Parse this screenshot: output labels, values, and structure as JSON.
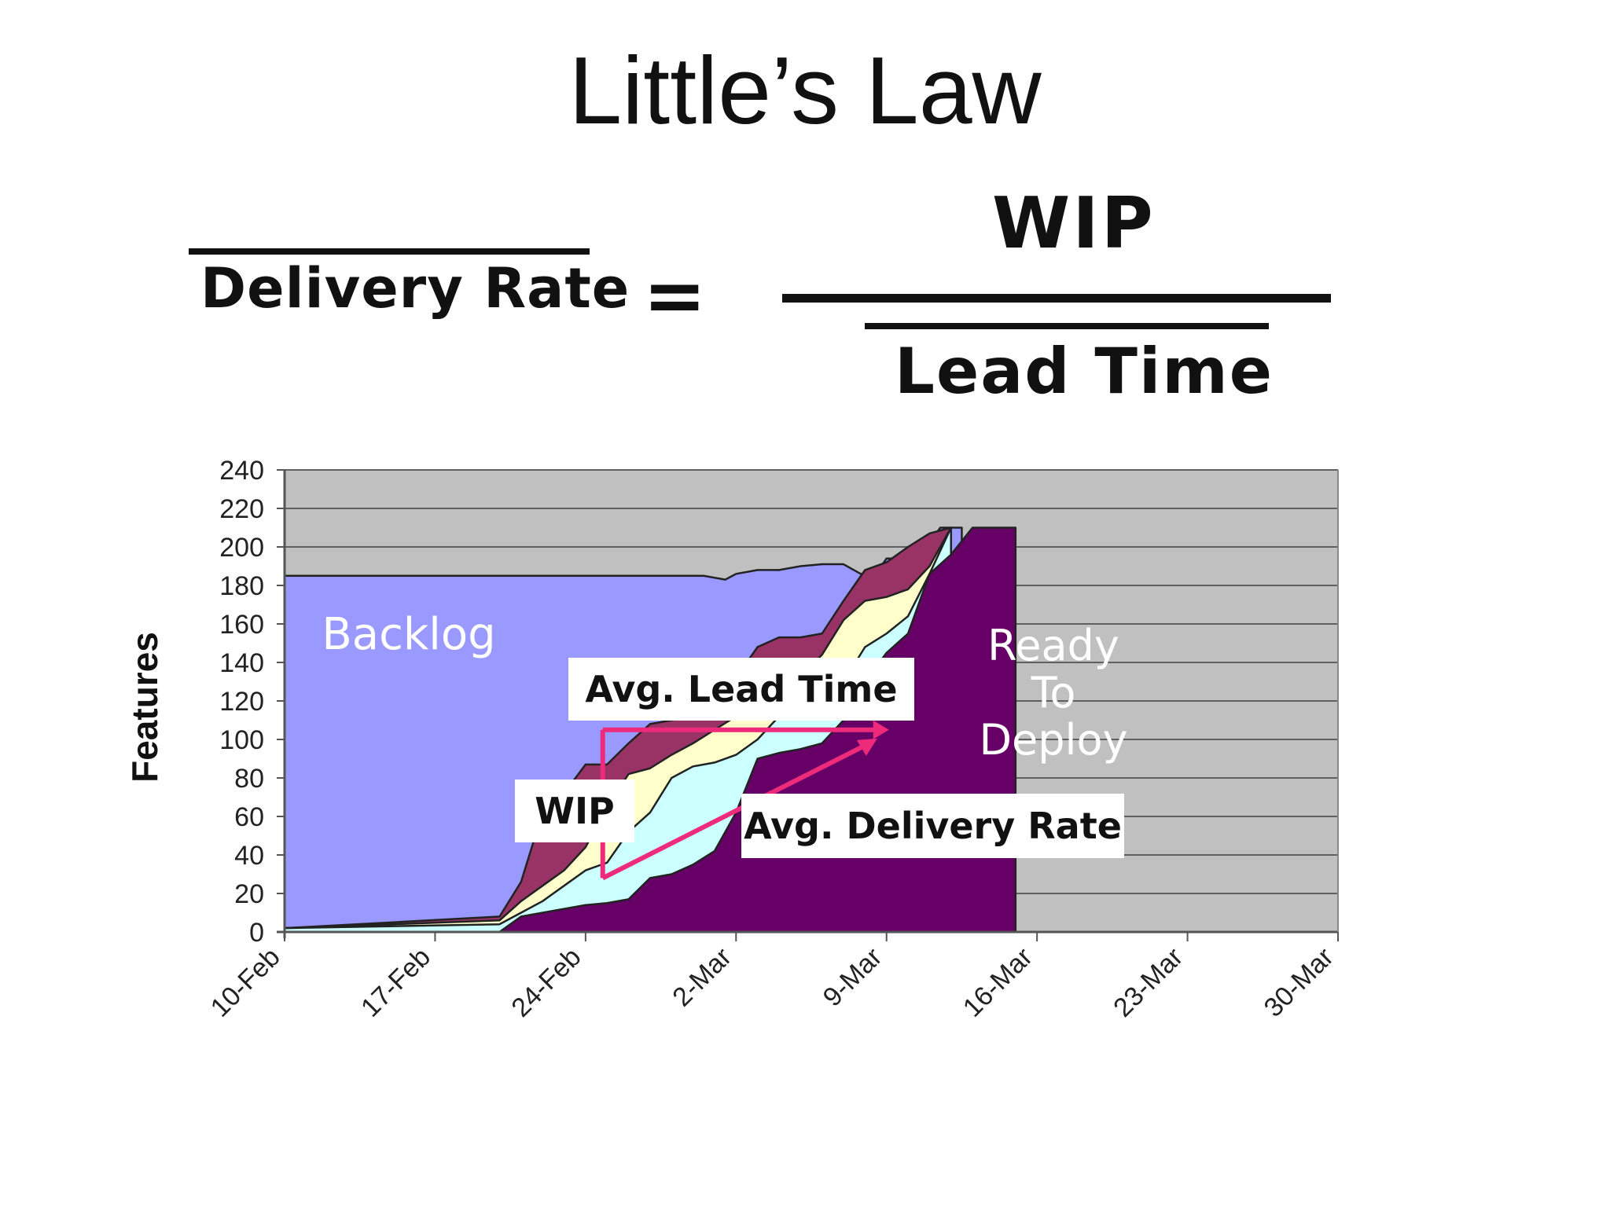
{
  "slide": {
    "title": "Little’s Law",
    "equation": {
      "left": "Delivery Rate",
      "equals": "=",
      "numerator": "WIP",
      "denominator": "Lead Time"
    }
  },
  "chart_data": {
    "type": "area",
    "ylabel": "Features",
    "xlabel": "",
    "ylim": [
      0,
      240
    ],
    "yticks": [
      "0",
      "20",
      "40",
      "60",
      "80",
      "100",
      "120",
      "140",
      "160",
      "180",
      "200",
      "220",
      "240"
    ],
    "xticks": [
      "10-Feb",
      "17-Feb",
      "24-Feb",
      "2-Mar",
      "9-Mar",
      "16-Mar",
      "23-Mar",
      "30-Mar"
    ],
    "grid": true,
    "colors": {
      "plot_bg": "#c0c0c0",
      "backlog": "#9999ff",
      "band_dark": "#993366",
      "band_light": "#ffffcc",
      "band_cyan": "#ccffff",
      "ready": "#660066",
      "arrow": "#ee2a7b"
    },
    "series": [
      {
        "name": "Backlog",
        "x": [
          0,
          10,
          12,
          13,
          14,
          15,
          16,
          17,
          18,
          19,
          19.5,
          20,
          20.5,
          21,
          22,
          23,
          24,
          25,
          26,
          26.8,
          27.5,
          28,
          29.5,
          30.5,
          31.5
        ],
        "y": [
          185,
          185,
          185,
          185,
          185,
          185,
          185,
          185,
          185,
          185,
          185,
          184,
          183,
          186,
          188,
          188,
          190,
          191,
          191,
          186,
          186,
          194,
          194,
          210,
          210
        ]
      },
      {
        "name": "",
        "x": [
          0,
          10,
          11,
          12,
          13,
          14,
          15,
          16,
          17,
          18,
          19,
          20,
          21,
          22,
          23,
          24,
          25,
          26,
          27,
          28,
          29,
          30,
          31
        ],
        "y": [
          2,
          8,
          26,
          62,
          72,
          87,
          87,
          98,
          108,
          110,
          112,
          125,
          132,
          148,
          153,
          153,
          155,
          172,
          188,
          192,
          200,
          207,
          210
        ]
      },
      {
        "name": "",
        "x": [
          0,
          10,
          11,
          12,
          13,
          14,
          15,
          16,
          17,
          18,
          19,
          20,
          21,
          22,
          23,
          24,
          25,
          26,
          27,
          28,
          29,
          30,
          31
        ],
        "y": [
          2,
          6,
          16,
          24,
          32,
          44,
          65,
          82,
          85,
          92,
          98,
          105,
          112,
          122,
          130,
          133,
          144,
          162,
          172,
          174,
          178,
          190,
          210
        ]
      },
      {
        "name": "",
        "x": [
          0,
          10,
          11,
          12,
          13,
          14,
          15,
          16,
          17,
          18,
          19,
          20,
          21,
          22,
          23,
          24,
          25,
          26,
          27,
          28,
          29,
          30,
          31
        ],
        "y": [
          2,
          4,
          10,
          16,
          24,
          32,
          36,
          52,
          62,
          80,
          86,
          88,
          92,
          100,
          112,
          114,
          115,
          130,
          148,
          155,
          164,
          186,
          210
        ]
      },
      {
        "name": "Ready To Deploy",
        "x": [
          0,
          10,
          11,
          12,
          13,
          14,
          15,
          16,
          17,
          18,
          19,
          20,
          21,
          22,
          23,
          24,
          25,
          26,
          27,
          28,
          29,
          30,
          31,
          32,
          33,
          34
        ],
        "y": [
          0,
          0,
          8,
          10,
          12,
          14,
          15,
          17,
          28,
          30,
          35,
          42,
          62,
          90,
          93,
          95,
          98,
          110,
          130,
          145,
          155,
          186,
          196,
          210,
          210,
          210
        ]
      }
    ],
    "annotations": {
      "backlog": "Backlog",
      "ready": "Ready To Deploy",
      "avg_lead_time": "Avg. Lead Time",
      "wip": "WIP",
      "avg_delivery_rate": "Avg. Delivery Rate"
    }
  }
}
